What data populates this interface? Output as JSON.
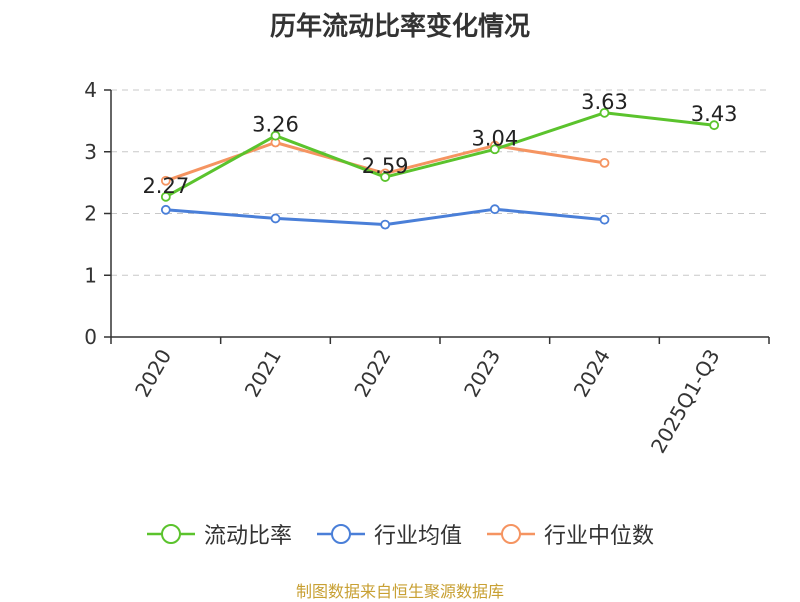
{
  "chart_data": {
    "type": "line",
    "title": "历年流动比率变化情况",
    "categories": [
      "2020",
      "2021",
      "2022",
      "2023",
      "2024",
      "2025Q1-Q3"
    ],
    "ylim": [
      0,
      4
    ],
    "yticks": [
      "0",
      "1",
      "2",
      "3",
      "4"
    ],
    "grid": true,
    "legend_position": "bottom",
    "series": [
      {
        "name": "流动比率",
        "color": "#5bc32d",
        "values": [
          2.27,
          3.26,
          2.59,
          3.04,
          3.63,
          3.43
        ],
        "labels": [
          "2.27",
          "3.26",
          "2.59",
          "3.04",
          "3.63",
          "3.43"
        ]
      },
      {
        "name": "行业均值",
        "color": "#4a7fd8",
        "values": [
          2.06,
          1.92,
          1.82,
          2.07,
          1.9,
          null
        ]
      },
      {
        "name": "行业中位数",
        "color": "#f59461",
        "values": [
          2.53,
          3.15,
          2.65,
          3.1,
          2.82,
          null
        ]
      }
    ]
  },
  "footer": {
    "source": "制图数据来自恒生聚源数据库"
  }
}
